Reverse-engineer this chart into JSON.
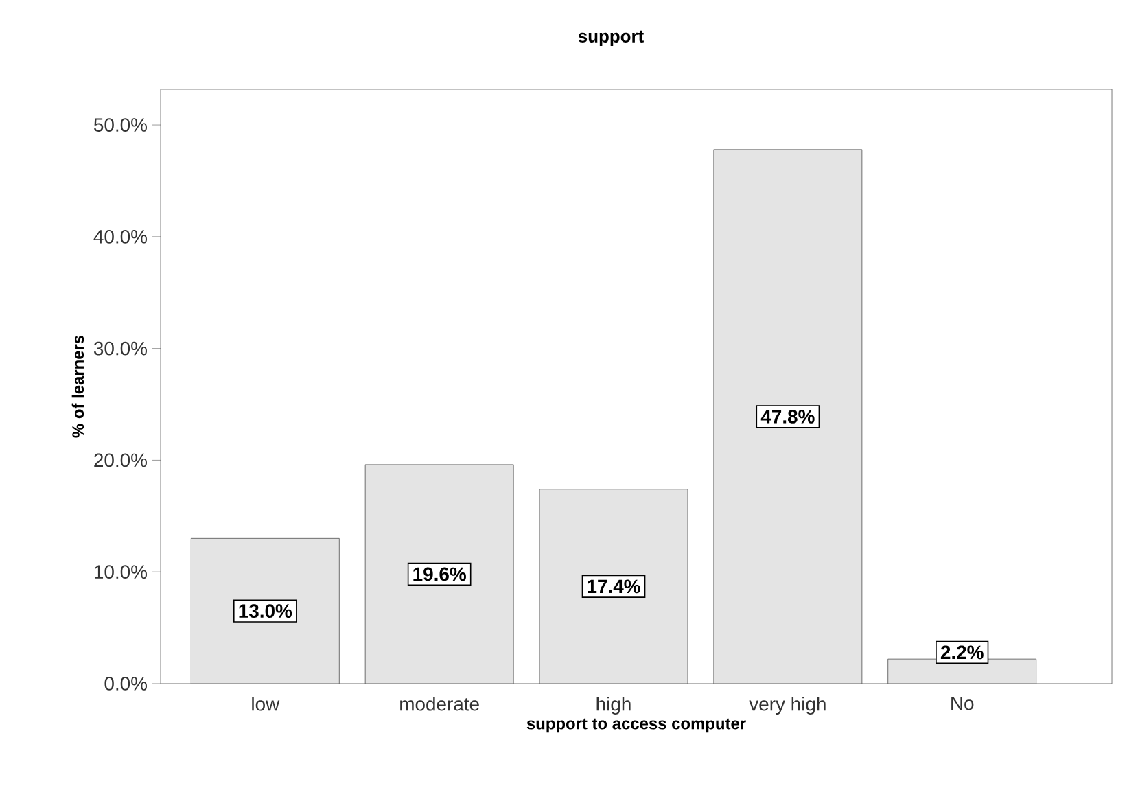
{
  "chart_data": {
    "type": "bar",
    "title": "support",
    "xlabel": "support to access computer",
    "ylabel": "% of learners",
    "categories": [
      "low",
      "moderate",
      "high",
      "very high",
      "No"
    ],
    "values": [
      13.0,
      19.6,
      17.4,
      47.8,
      2.2
    ],
    "value_labels": [
      "13.0%",
      "19.6%",
      "17.4%",
      "47.8%",
      "2.2%"
    ],
    "color": "#e4e4e4",
    "ylim": [
      0,
      53.2
    ],
    "yticks": [
      {
        "value": 0,
        "label": "0.0%"
      },
      {
        "value": 10,
        "label": "10.0%"
      },
      {
        "value": 20,
        "label": "20.0%"
      },
      {
        "value": 30,
        "label": "30.0%"
      },
      {
        "value": 40,
        "label": "40.0%"
      },
      {
        "value": 50,
        "label": "50.0%"
      }
    ],
    "grid": false
  }
}
